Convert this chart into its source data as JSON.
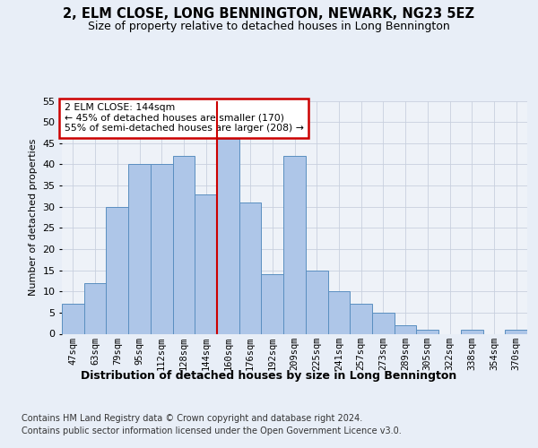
{
  "title1": "2, ELM CLOSE, LONG BENNINGTON, NEWARK, NG23 5EZ",
  "title2": "Size of property relative to detached houses in Long Bennington",
  "xlabel": "Distribution of detached houses by size in Long Bennington",
  "ylabel": "Number of detached properties",
  "categories": [
    "47sqm",
    "63sqm",
    "79sqm",
    "95sqm",
    "112sqm",
    "128sqm",
    "144sqm",
    "160sqm",
    "176sqm",
    "192sqm",
    "209sqm",
    "225sqm",
    "241sqm",
    "257sqm",
    "273sqm",
    "289sqm",
    "305sqm",
    "322sqm",
    "338sqm",
    "354sqm",
    "370sqm"
  ],
  "values": [
    7,
    12,
    30,
    40,
    40,
    42,
    33,
    46,
    31,
    14,
    42,
    15,
    10,
    7,
    5,
    2,
    1,
    0,
    1,
    0,
    1
  ],
  "bar_color": "#aec6e8",
  "bar_edge_color": "#5a8fc0",
  "vline_x": 6.5,
  "vline_color": "#cc0000",
  "annotation_text": "2 ELM CLOSE: 144sqm\n← 45% of detached houses are smaller (170)\n55% of semi-detached houses are larger (208) →",
  "annotation_box_color": "#ffffff",
  "annotation_box_edge": "#cc0000",
  "ylim": [
    0,
    55
  ],
  "yticks": [
    0,
    5,
    10,
    15,
    20,
    25,
    30,
    35,
    40,
    45,
    50,
    55
  ],
  "footnote1": "Contains HM Land Registry data © Crown copyright and database right 2024.",
  "footnote2": "Contains public sector information licensed under the Open Government Licence v3.0.",
  "bg_color": "#e8eef7",
  "plot_bg_color": "#eef2f8",
  "title1_fontsize": 10.5,
  "title2_fontsize": 9,
  "xlabel_fontsize": 9,
  "ylabel_fontsize": 8,
  "footnote_fontsize": 7,
  "tick_fontsize": 7.5
}
